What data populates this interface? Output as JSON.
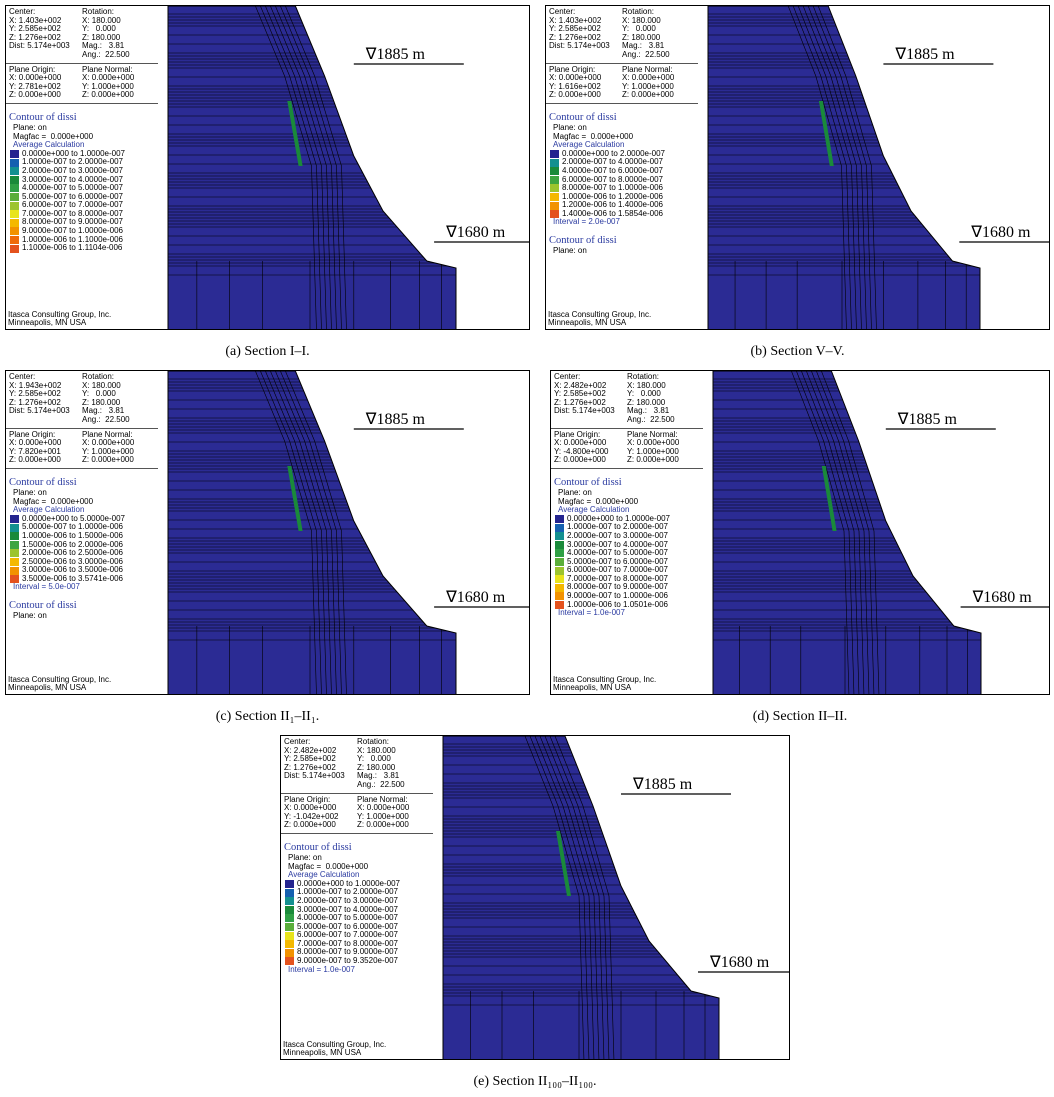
{
  "panels": [
    {
      "caption": "(a) Section I–I.",
      "levels": [
        "∇1885 m",
        "∇1680 m"
      ],
      "view": {
        "left": [
          "Center:",
          "X: 1.403e+002",
          "Y: 2.585e+002",
          "Z: 1.276e+002",
          "Dist: 5.174e+003"
        ],
        "right": [
          "Rotation:",
          "X: 180.000",
          "Y:   0.000",
          "Z: 180.000",
          "Mag.:   3.81",
          "Ang.:  22.500"
        ]
      },
      "plane": {
        "left": [
          "Plane Origin:",
          "X: 0.000e+000",
          "Y: 2.781e+002",
          "Z: 0.000e+000"
        ],
        "right": [
          "Plane Normal:",
          "X: 0.000e+000",
          "Y: 1.000e+000",
          "Z: 0.000e+000"
        ]
      },
      "contour": {
        "title": "Contour of dissi",
        "lines": [
          "Plane: on",
          "Magfac =  0.000e+000"
        ],
        "method": "Average Calculation",
        "legend": [
          {
            "range": "0.0000e+000 to 1.0000e-007",
            "color": "#24248f"
          },
          {
            "range": "1.0000e-007 to 2.0000e-007",
            "color": "#1560b0"
          },
          {
            "range": "2.0000e-007 to 3.0000e-007",
            "color": "#139090"
          },
          {
            "range": "3.0000e-007 to 4.0000e-007",
            "color": "#1a8a3a"
          },
          {
            "range": "4.0000e-007 to 5.0000e-007",
            "color": "#2fa045"
          },
          {
            "range": "5.0000e-007 to 6.0000e-007",
            "color": "#5aae3a"
          },
          {
            "range": "6.0000e-007 to 7.0000e-007",
            "color": "#9cc42e"
          },
          {
            "range": "7.0000e-007 to 8.0000e-007",
            "color": "#e8e41c"
          },
          {
            "range": "8.0000e-007 to 9.0000e-007",
            "color": "#f4b800"
          },
          {
            "range": "9.0000e-007 to 1.0000e-006",
            "color": "#f29200"
          },
          {
            "range": "1.0000e-006 to 1.1000e-006",
            "color": "#ef6a0a"
          },
          {
            "range": "1.1000e-006 to 1.1104e-006",
            "color": "#e4521e"
          }
        ]
      },
      "footer": [
        "Itasca Consulting Group, Inc.",
        "Minneapolis, MN  USA"
      ]
    },
    {
      "caption": "(b) Section V–V.",
      "levels": [
        "∇1885 m",
        "∇1680 m"
      ],
      "view": {
        "left": [
          "Center:",
          "X: 1.403e+002",
          "Y: 2.585e+002",
          "Z: 1.276e+002",
          "Dist: 5.174e+003"
        ],
        "right": [
          "Rotation:",
          "X: 180.000",
          "Y:   0.000",
          "Z: 180.000",
          "Mag.:   3.81",
          "Ang.:  22.500"
        ]
      },
      "plane": {
        "left": [
          "Plane Origin:",
          "X: 0.000e+000",
          "Y: 1.616e+002",
          "Z: 0.000e+000"
        ],
        "right": [
          "Plane Normal:",
          "X: 0.000e+000",
          "Y: 1.000e+000",
          "Z: 0.000e+000"
        ]
      },
      "contour": {
        "title": "Contour of dissi",
        "lines": [
          "Plane: on",
          "Magfac =  0.000e+000"
        ],
        "method": "Average Calculation",
        "legend": [
          {
            "range": "0.0000e+000 to 2.0000e-007",
            "color": "#24248f"
          },
          {
            "range": "2.0000e-007 to 4.0000e-007",
            "color": "#139090"
          },
          {
            "range": "4.0000e-007 to 6.0000e-007",
            "color": "#1a8a3a"
          },
          {
            "range": "6.0000e-007 to 8.0000e-007",
            "color": "#3ea540"
          },
          {
            "range": "8.0000e-007 to 1.0000e-006",
            "color": "#9cc42e"
          },
          {
            "range": "1.0000e-006 to 1.2000e-006",
            "color": "#f4b800"
          },
          {
            "range": "1.2000e-006 to 1.4000e-006",
            "color": "#f29200"
          },
          {
            "range": "1.4000e-006 to 1.5854e-006",
            "color": "#e4521e"
          }
        ],
        "interval": "Interval = 2.0e-007"
      },
      "extra": [
        "Contour of dissi",
        "Plane: on"
      ],
      "footer": [
        "Itasca Consulting Group, Inc.",
        "Minneapolis, MN  USA"
      ]
    },
    {
      "caption": "(c) Section II₁–II₁.",
      "levels": [
        "∇1885 m",
        "∇1680 m"
      ],
      "view": {
        "left": [
          "Center:",
          "X: 1.943e+002",
          "Y: 2.585e+002",
          "Z: 1.276e+002",
          "Dist: 5.174e+003"
        ],
        "right": [
          "Rotation:",
          "X: 180.000",
          "Y:   0.000",
          "Z: 180.000",
          "Mag.:   3.81",
          "Ang.:  22.500"
        ]
      },
      "plane": {
        "left": [
          "Plane Origin:",
          "X: 0.000e+000",
          "Y: 7.820e+001",
          "Z: 0.000e+000"
        ],
        "right": [
          "Plane Normal:",
          "X: 0.000e+000",
          "Y: 1.000e+000",
          "Z: 0.000e+000"
        ]
      },
      "contour": {
        "title": "Contour of dissi",
        "lines": [
          "Plane: on",
          "Magfac =  0.000e+000"
        ],
        "method": "Average Calculation",
        "legend": [
          {
            "range": "0.0000e+000 to 5.0000e-007",
            "color": "#24248f"
          },
          {
            "range": "5.0000e-007 to 1.0000e-006",
            "color": "#139090"
          },
          {
            "range": "1.0000e-006 to 1.5000e-006",
            "color": "#1a8a3a"
          },
          {
            "range": "1.5000e-006 to 2.0000e-006",
            "color": "#3ea540"
          },
          {
            "range": "2.0000e-006 to 2.5000e-006",
            "color": "#9cc42e"
          },
          {
            "range": "2.5000e-006 to 3.0000e-006",
            "color": "#f4b800"
          },
          {
            "range": "3.0000e-006 to 3.5000e-006",
            "color": "#f29200"
          },
          {
            "range": "3.5000e-006 to 3.5741e-006",
            "color": "#e4521e"
          }
        ],
        "interval": "Interval = 5.0e-007"
      },
      "extra": [
        "Contour of dissi",
        "Plane: on"
      ],
      "footer": [
        "Itasca Consulting Group, Inc.",
        "Minneapolis, MN  USA"
      ]
    },
    {
      "caption": "(d) Section II–II.",
      "levels": [
        "∇1885 m",
        "∇1680 m"
      ],
      "view": {
        "left": [
          "Center:",
          "X: 2.482e+002",
          "Y: 2.585e+002",
          "Z: 1.276e+002",
          "Dist: 5.174e+003"
        ],
        "right": [
          "Rotation:",
          "X: 180.000",
          "Y:   0.000",
          "Z: 180.000",
          "Mag.:   3.81",
          "Ang.:  22.500"
        ]
      },
      "plane": {
        "left": [
          "Plane Origin:",
          "X: 0.000e+000",
          "Y: -4.800e+000",
          "Z: 0.000e+000"
        ],
        "right": [
          "Plane Normal:",
          "X: 0.000e+000",
          "Y: 1.000e+000",
          "Z: 0.000e+000"
        ]
      },
      "contour": {
        "title": "Contour of dissi",
        "lines": [
          "Plane: on",
          "Magfac =  0.000e+000"
        ],
        "method": "Average Calculation",
        "legend": [
          {
            "range": "0.0000e+000 to 1.0000e-007",
            "color": "#24248f"
          },
          {
            "range": "1.0000e-007 to 2.0000e-007",
            "color": "#1560b0"
          },
          {
            "range": "2.0000e-007 to 3.0000e-007",
            "color": "#139090"
          },
          {
            "range": "3.0000e-007 to 4.0000e-007",
            "color": "#1a8a3a"
          },
          {
            "range": "4.0000e-007 to 5.0000e-007",
            "color": "#2fa045"
          },
          {
            "range": "5.0000e-007 to 6.0000e-007",
            "color": "#5aae3a"
          },
          {
            "range": "6.0000e-007 to 7.0000e-007",
            "color": "#9cc42e"
          },
          {
            "range": "7.0000e-007 to 8.0000e-007",
            "color": "#e8e41c"
          },
          {
            "range": "8.0000e-007 to 9.0000e-007",
            "color": "#f4b800"
          },
          {
            "range": "9.0000e-007 to 1.0000e-006",
            "color": "#f29200"
          },
          {
            "range": "1.0000e-006 to 1.0501e-006",
            "color": "#e4521e"
          }
        ],
        "interval": "Interval = 1.0e-007"
      },
      "footer": [
        "Itasca Consulting Group, Inc.",
        "Minneapolis, MN  USA"
      ]
    },
    {
      "caption": "(e) Section II₁₀₀–II₁₀₀.",
      "levels": [
        "∇1885 m",
        "∇1680 m"
      ],
      "view": {
        "left": [
          "Center:",
          "X: 2.482e+002",
          "Y: 2.585e+002",
          "Z: 1.276e+002",
          "Dist: 5.174e+003"
        ],
        "right": [
          "Rotation:",
          "X: 180.000",
          "Y:   0.000",
          "Z: 180.000",
          "Mag.:   3.81",
          "Ang.:  22.500"
        ]
      },
      "plane": {
        "left": [
          "Plane Origin:",
          "X: 0.000e+000",
          "Y: -1.042e+002",
          "Z: 0.000e+000"
        ],
        "right": [
          "Plane Normal:",
          "X: 0.000e+000",
          "Y: 1.000e+000",
          "Z: 0.000e+000"
        ]
      },
      "contour": {
        "title": "Contour of dissi",
        "lines": [
          "Plane: on",
          "Magfac =  0.000e+000"
        ],
        "method": "Average Calculation",
        "legend": [
          {
            "range": "0.0000e+000 to 1.0000e-007",
            "color": "#24248f"
          },
          {
            "range": "1.0000e-007 to 2.0000e-007",
            "color": "#1560b0"
          },
          {
            "range": "2.0000e-007 to 3.0000e-007",
            "color": "#139090"
          },
          {
            "range": "3.0000e-007 to 4.0000e-007",
            "color": "#1a8a3a"
          },
          {
            "range": "4.0000e-007 to 5.0000e-007",
            "color": "#2fa045"
          },
          {
            "range": "5.0000e-007 to 6.0000e-007",
            "color": "#5aae3a"
          },
          {
            "range": "6.0000e-007 to 7.0000e-007",
            "color": "#e8e41c"
          },
          {
            "range": "7.0000e-007 to 8.0000e-007",
            "color": "#f4b800"
          },
          {
            "range": "8.0000e-007 to 9.0000e-007",
            "color": "#f29200"
          },
          {
            "range": "9.0000e-007 to 9.3520e-007",
            "color": "#e4521e"
          }
        ],
        "interval": "Interval = 1.0e-007"
      },
      "footer": [
        "Itasca Consulting Group, Inc.",
        "Minneapolis, MN  USA"
      ]
    }
  ]
}
